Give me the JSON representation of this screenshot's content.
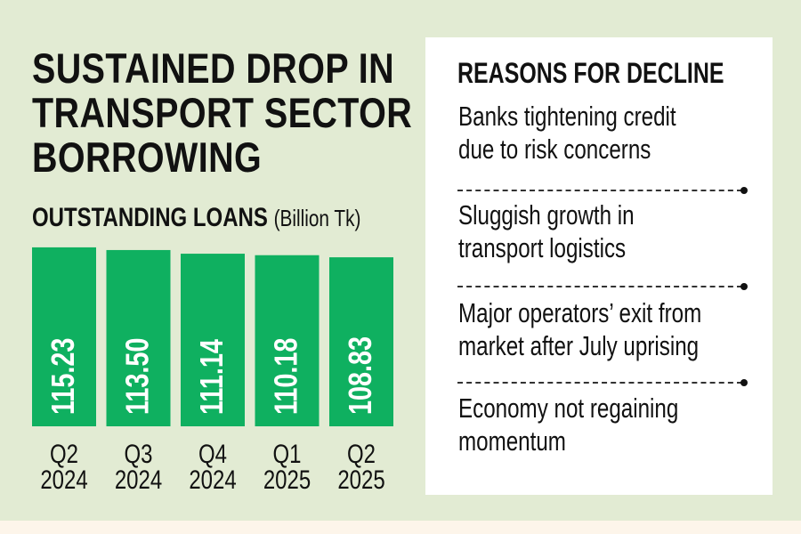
{
  "title_lines": [
    "SUSTAINED DROP IN",
    "TRANSPORT SECTOR",
    "BORROWING"
  ],
  "subtitle": {
    "bold": "OUTSTANDING LOANS",
    "unit": "(Billion Tk)"
  },
  "colors": {
    "bar": "#0fb060",
    "background": "#e2ebd3",
    "bottom_strip": "#fdf5ea"
  },
  "chart_data": {
    "type": "bar",
    "title": "OUTSTANDING LOANS (Billion Tk)",
    "categories": [
      [
        "Q2",
        "2024"
      ],
      [
        "Q3",
        "2024"
      ],
      [
        "Q4",
        "2024"
      ],
      [
        "Q1",
        "2025"
      ],
      [
        "Q2",
        "2025"
      ]
    ],
    "values": [
      115.23,
      113.5,
      111.14,
      110.18,
      108.83
    ],
    "value_labels": [
      "115.23",
      "113.50",
      "111.14",
      "110.18",
      "108.83"
    ],
    "xlabel": "",
    "ylabel": "Billion Tk",
    "ylim": [
      0,
      120
    ]
  },
  "reasons": {
    "heading": "REASONS FOR DECLINE",
    "items": [
      [
        "Banks tightening credit",
        "due to risk concerns"
      ],
      [
        "Sluggish growth in",
        "transport logistics"
      ],
      [
        "Major operators’ exit from",
        "market after July uprising"
      ],
      [
        "Economy not regaining",
        "momentum"
      ]
    ]
  }
}
